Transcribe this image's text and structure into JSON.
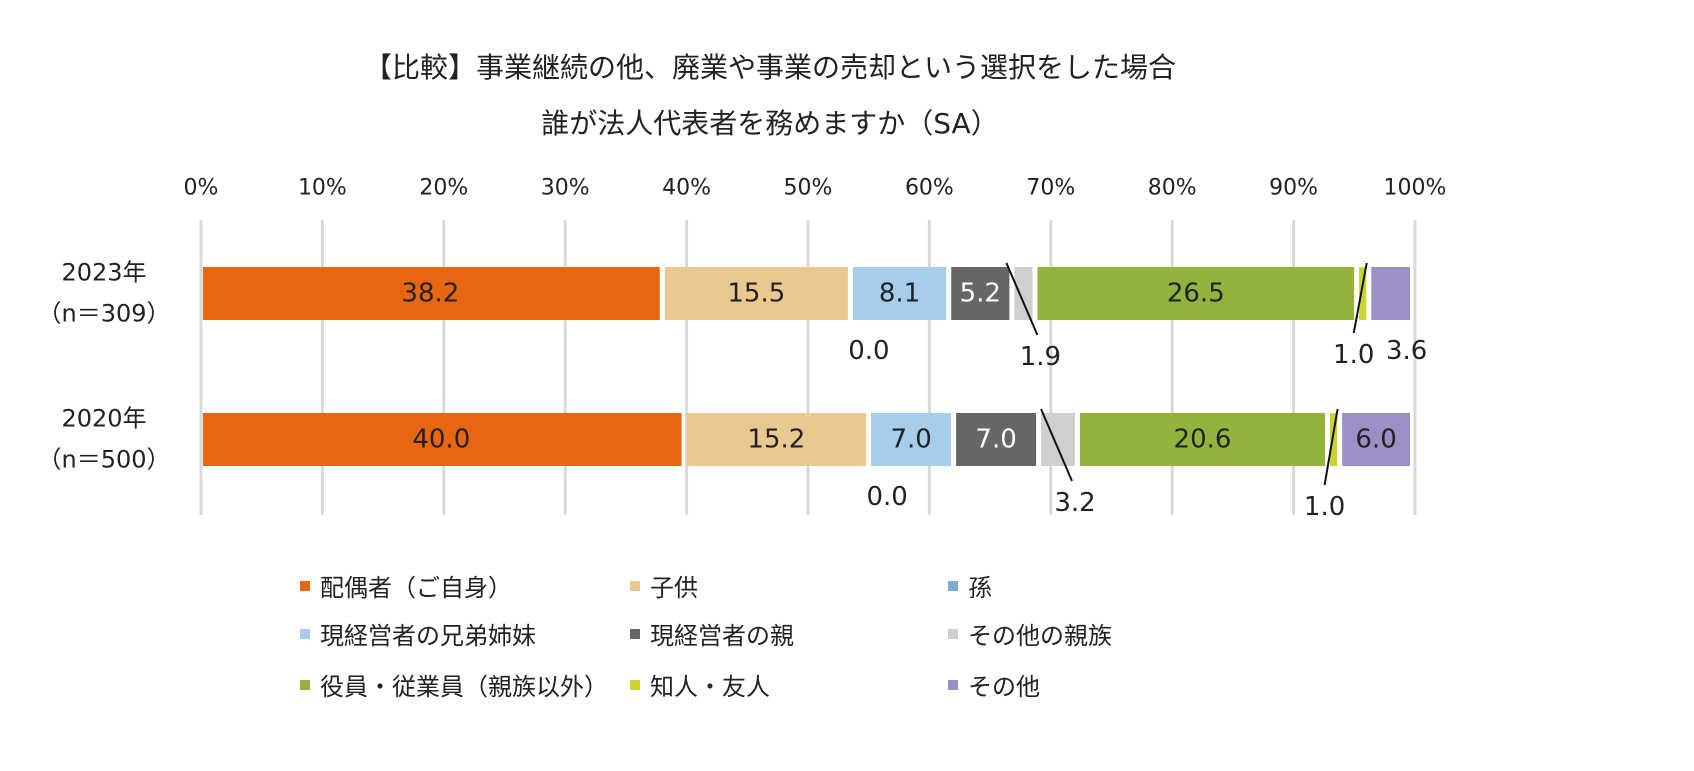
{
  "chart_data": {
    "type": "bar",
    "orientation": "horizontal",
    "stacked": true,
    "title": [
      "【比較】事業継続の他、廃業や事業の売却という選択をした場合",
      "誰が法人代表者を務めますか（SA）"
    ],
    "xlim": [
      0,
      100
    ],
    "x_ticks": [
      "0%",
      "10%",
      "20%",
      "30%",
      "40%",
      "50%",
      "60%",
      "70%",
      "80%",
      "90%",
      "100%"
    ],
    "categories": [
      {
        "label": "2023年",
        "sublabel": "（n＝309）"
      },
      {
        "label": "2020年",
        "sublabel": "（n＝500）"
      }
    ],
    "series": [
      {
        "name": "配偶者（ご自身）",
        "color": "#E86511",
        "text_color": "#222222",
        "values": [
          38.2,
          40.0
        ],
        "labels": [
          "38.2",
          "40.0"
        ]
      },
      {
        "name": "子供",
        "color": "#EAC991",
        "text_color": "#222222",
        "values": [
          15.5,
          15.2
        ],
        "labels": [
          "15.5",
          "15.2"
        ]
      },
      {
        "name": "孫",
        "color": "#7EA9D8",
        "text_color": "#222222",
        "values": [
          0.0,
          0.0
        ],
        "labels": [
          "0.0",
          "0.0"
        ]
      },
      {
        "name": "現経営者の兄弟姉妹",
        "color": "#A7CDEC",
        "text_color": "#222222",
        "values": [
          8.1,
          7.0
        ],
        "labels": [
          "8.1",
          "7.0"
        ]
      },
      {
        "name": "現経営者の親",
        "color": "#666666",
        "text_color": "#ffffff",
        "values": [
          5.2,
          7.0
        ],
        "labels": [
          "5.2",
          "7.0"
        ]
      },
      {
        "name": "その他の親族",
        "color": "#CFCFCF",
        "text_color": "#222222",
        "values": [
          1.9,
          3.2
        ],
        "labels": [
          "1.9",
          "3.2"
        ]
      },
      {
        "name": "役員・従業員（親族以外）",
        "color": "#92B33C",
        "text_color": "#222222",
        "values": [
          26.5,
          20.6
        ],
        "labels": [
          "26.5",
          "20.6"
        ]
      },
      {
        "name": "知人・友人",
        "color": "#CBD32C",
        "text_color": "#222222",
        "values": [
          1.0,
          1.0
        ],
        "labels": [
          "1.0",
          "1.0"
        ]
      },
      {
        "name": "その他",
        "color": "#9B8FC6",
        "text_color": "#222222",
        "values": [
          3.6,
          6.0
        ],
        "labels": [
          "3.6",
          "6.0"
        ]
      }
    ]
  }
}
